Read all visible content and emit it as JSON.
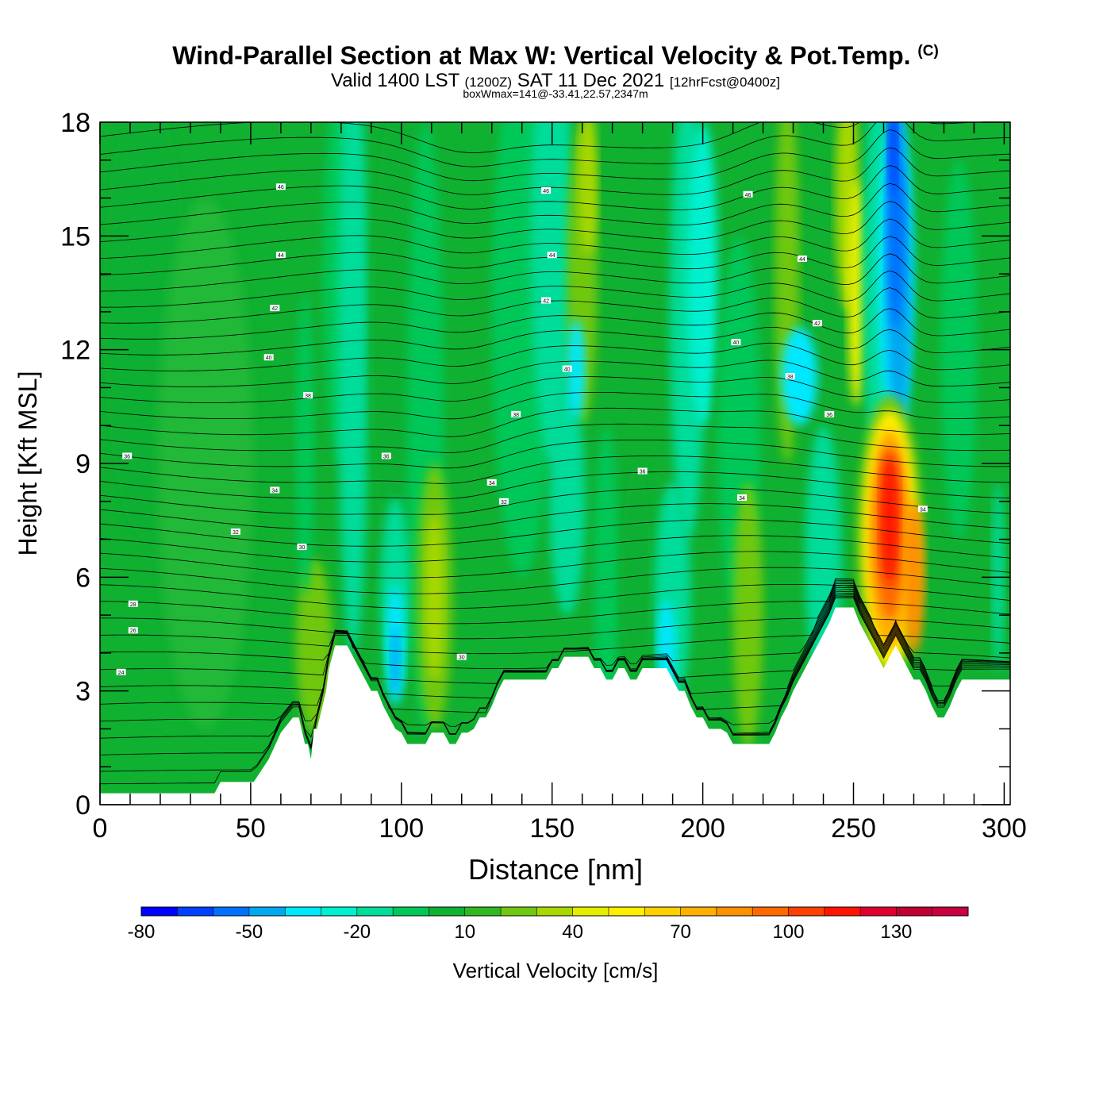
{
  "header": {
    "title_main": "Wind-Parallel Section at Max W: Vertical Velocity & Pot.Temp.",
    "title_copyright": "(C)",
    "valid_prefix": "Valid 1400 LST",
    "valid_zulu": "(1200Z)",
    "valid_date": "SAT 11 Dec 2021",
    "valid_forecast": "[12hrFcst@0400z]",
    "box_info": "boxWmax=141@-33.41,22.57,2347m"
  },
  "chart_data": {
    "type": "heatmap",
    "title": "Wind-Parallel Section at Max W: Vertical Velocity & Pot.Temp.",
    "xlabel": "Distance [nm]",
    "ylabel": "Height [Kft MSL]",
    "xlim": [
      0,
      302
    ],
    "ylim": [
      0,
      18
    ],
    "xticks": [
      0,
      50,
      100,
      150,
      200,
      250,
      300
    ],
    "yticks": [
      0,
      3,
      6,
      9,
      12,
      15,
      18
    ],
    "colorbar": {
      "label": "Vertical Velocity [cm/s]",
      "min": -80,
      "max": 150,
      "step": 10,
      "tick_values": [
        -80,
        -50,
        -20,
        10,
        40,
        70,
        100,
        130
      ],
      "tick_labels": [
        "-80",
        "-50",
        "-20",
        "10",
        "40",
        "70",
        "100",
        "130"
      ],
      "colors": [
        "#0000ff",
        "#0040ff",
        "#0070ff",
        "#00a8f0",
        "#00e8ff",
        "#00f0d0",
        "#00dc9a",
        "#00c858",
        "#10b030",
        "#30b820",
        "#70c810",
        "#a8d800",
        "#e4ee00",
        "#ffee00",
        "#ffd000",
        "#ffb000",
        "#ff9000",
        "#ff6a00",
        "#ff4000",
        "#ff1400",
        "#e00030",
        "#c00030",
        "#c80040"
      ]
    },
    "terrain_profile": {
      "x": [
        0,
        38,
        40,
        51,
        56,
        60,
        64,
        66,
        68,
        69,
        70,
        71,
        72,
        75,
        76,
        78,
        82,
        84,
        86,
        88,
        90,
        92,
        94,
        96,
        98,
        100,
        102,
        108,
        110,
        114,
        116,
        118,
        120,
        122,
        124,
        126,
        128,
        130,
        132,
        134,
        136,
        138,
        146,
        148,
        150,
        152,
        154,
        156,
        158,
        162,
        164,
        166,
        168,
        170,
        172,
        174,
        176,
        178,
        180,
        188,
        190,
        192,
        194,
        196,
        198,
        200,
        202,
        206,
        208,
        210,
        222,
        224,
        226,
        228,
        230,
        232,
        234,
        236,
        238,
        240,
        242,
        244,
        246,
        248,
        250,
        252,
        254,
        256,
        258,
        260,
        262,
        264,
        266,
        268,
        270,
        272,
        274,
        276,
        278,
        280,
        282,
        284,
        286,
        302
      ],
      "height": [
        0.3,
        0.3,
        0.6,
        0.6,
        1.2,
        1.9,
        2.3,
        2.3,
        1.6,
        1.6,
        1.2,
        2.0,
        2.0,
        3.0,
        3.6,
        4.2,
        4.2,
        3.9,
        3.6,
        3.3,
        3.0,
        3.0,
        2.6,
        2.3,
        2.0,
        1.9,
        1.6,
        1.6,
        1.9,
        1.9,
        1.6,
        1.6,
        1.9,
        1.9,
        2.0,
        2.3,
        2.3,
        2.6,
        3.0,
        3.3,
        3.3,
        3.3,
        3.3,
        3.3,
        3.6,
        3.6,
        3.9,
        3.9,
        3.9,
        3.9,
        3.6,
        3.6,
        3.3,
        3.3,
        3.6,
        3.6,
        3.3,
        3.3,
        3.6,
        3.6,
        3.3,
        3.0,
        3.0,
        2.6,
        2.3,
        2.3,
        2.0,
        2.0,
        1.9,
        1.6,
        1.6,
        1.9,
        2.3,
        2.6,
        3.0,
        3.3,
        3.6,
        3.9,
        4.2,
        4.5,
        4.8,
        5.2,
        5.2,
        5.2,
        5.2,
        4.8,
        4.5,
        4.2,
        3.9,
        3.6,
        3.9,
        4.2,
        3.9,
        3.6,
        3.3,
        3.3,
        3.0,
        2.6,
        2.3,
        2.3,
        2.6,
        3.0,
        3.3,
        3.3
      ]
    },
    "updraft_core": {
      "x": 262,
      "height": 7.5,
      "max_cm_s": 141,
      "label": "boxWmax=141"
    },
    "downdraft_core": {
      "x": 264,
      "height": 15.0,
      "min_cm_s": -80
    },
    "isentrope_labels": [
      {
        "x": 60,
        "height": 16.3,
        "text": "46"
      },
      {
        "x": 60,
        "height": 14.5,
        "text": "44"
      },
      {
        "x": 58,
        "height": 13.1,
        "text": "42"
      },
      {
        "x": 56,
        "height": 11.8,
        "text": "40"
      },
      {
        "x": 69,
        "height": 10.8,
        "text": "38"
      },
      {
        "x": 9,
        "height": 9.2,
        "text": "36"
      },
      {
        "x": 58,
        "height": 8.3,
        "text": "34"
      },
      {
        "x": 45,
        "height": 7.2,
        "text": "32"
      },
      {
        "x": 67,
        "height": 6.8,
        "text": "30"
      },
      {
        "x": 11,
        "height": 5.3,
        "text": "28"
      },
      {
        "x": 11,
        "height": 4.6,
        "text": "26"
      },
      {
        "x": 7,
        "height": 3.5,
        "text": "24"
      },
      {
        "x": 148,
        "height": 16.2,
        "text": "46"
      },
      {
        "x": 150,
        "height": 14.5,
        "text": "44"
      },
      {
        "x": 148,
        "height": 13.3,
        "text": "42"
      },
      {
        "x": 155,
        "height": 11.5,
        "text": "40"
      },
      {
        "x": 138,
        "height": 10.3,
        "text": "38"
      },
      {
        "x": 95,
        "height": 9.2,
        "text": "36"
      },
      {
        "x": 130,
        "height": 8.5,
        "text": "34"
      },
      {
        "x": 134,
        "height": 8.0,
        "text": "32"
      },
      {
        "x": 120,
        "height": 3.9,
        "text": "30"
      },
      {
        "x": 180,
        "height": 8.8,
        "text": "36"
      },
      {
        "x": 215,
        "height": 16.1,
        "text": "46"
      },
      {
        "x": 233,
        "height": 14.4,
        "text": "44"
      },
      {
        "x": 238,
        "height": 12.7,
        "text": "42"
      },
      {
        "x": 211,
        "height": 12.2,
        "text": "40"
      },
      {
        "x": 229,
        "height": 11.3,
        "text": "38"
      },
      {
        "x": 242,
        "height": 10.3,
        "text": "36"
      },
      {
        "x": 213,
        "height": 8.1,
        "text": "34"
      },
      {
        "x": 273,
        "height": 7.8,
        "text": "34"
      }
    ]
  }
}
